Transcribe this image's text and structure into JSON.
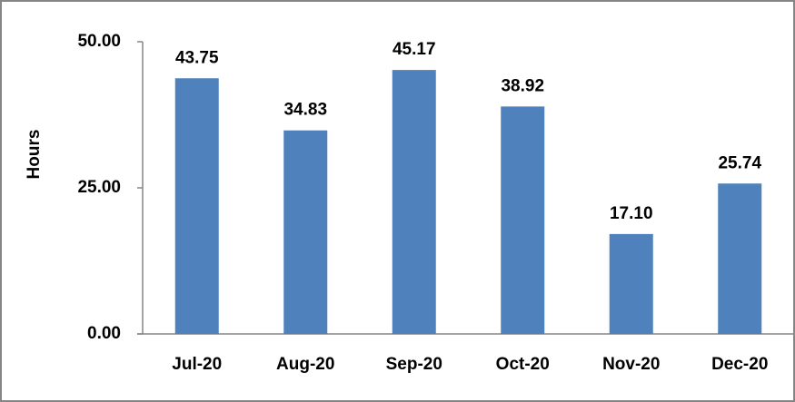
{
  "chart_data": {
    "type": "bar",
    "y_label": "Hours",
    "categories": [
      "Jul-20",
      "Aug-20",
      "Sep-20",
      "Oct-20",
      "Nov-20",
      "Dec-20"
    ],
    "values": [
      43.75,
      34.83,
      45.17,
      38.92,
      17.1,
      25.74
    ],
    "value_labels": [
      "43.75",
      "34.83",
      "45.17",
      "38.92",
      "17.10",
      "25.74"
    ],
    "color": "#4f81bd",
    "ylim": [
      0,
      50
    ],
    "yticks": [
      {
        "value": 0,
        "label": "0.00"
      },
      {
        "value": 25,
        "label": "25.00"
      },
      {
        "value": 50,
        "label": "50.00"
      }
    ],
    "grid": false
  }
}
